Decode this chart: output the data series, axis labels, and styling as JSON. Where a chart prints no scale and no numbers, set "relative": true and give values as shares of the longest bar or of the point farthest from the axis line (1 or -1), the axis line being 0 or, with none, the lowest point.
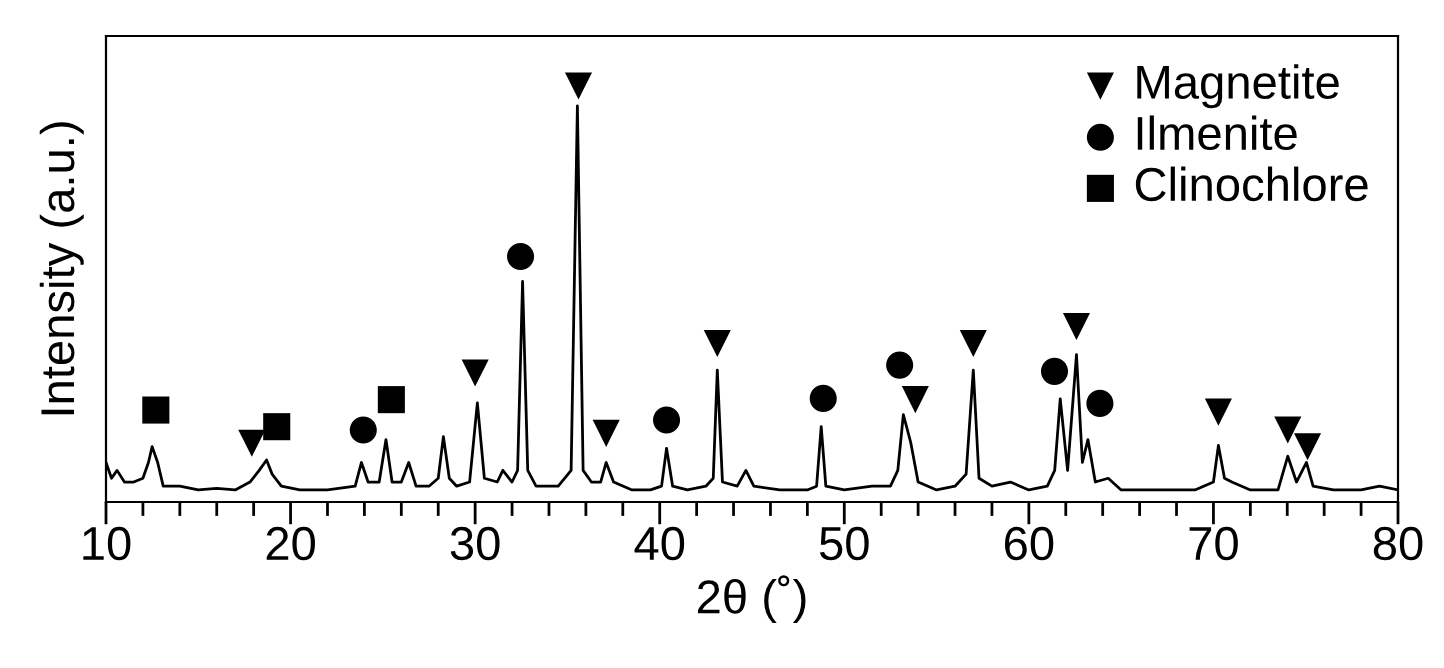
{
  "chart_data": {
    "type": "line",
    "xlabel": "2θ (˚)",
    "ylabel": "Intensity (a.u.)",
    "relative": true,
    "xlim": [
      10,
      80
    ],
    "xticks": [
      10,
      {
        "value": 12,
        "label": null
      },
      {
        "value": 14,
        "label": null
      },
      {
        "value": 16,
        "label": null
      },
      {
        "value": 18,
        "label": null
      },
      20,
      {
        "value": 22,
        "label": null
      },
      {
        "value": 24,
        "label": null
      },
      {
        "value": 26,
        "label": null
      },
      {
        "value": 28,
        "label": null
      },
      30,
      {
        "value": 32,
        "label": null
      },
      {
        "value": 34,
        "label": null
      },
      {
        "value": 36,
        "label": null
      },
      {
        "value": 38,
        "label": null
      },
      40,
      {
        "value": 42,
        "label": null
      },
      {
        "value": 44,
        "label": null
      },
      {
        "value": 46,
        "label": null
      },
      {
        "value": 48,
        "label": null
      },
      50,
      {
        "value": 52,
        "label": null
      },
      {
        "value": 54,
        "label": null
      },
      {
        "value": 56,
        "label": null
      },
      {
        "value": 58,
        "label": null
      },
      60,
      {
        "value": 62,
        "label": null
      },
      {
        "value": 64,
        "label": null
      },
      {
        "value": 66,
        "label": null
      },
      {
        "value": 68,
        "label": null
      },
      70,
      {
        "value": 72,
        "label": null
      },
      {
        "value": 74,
        "label": null
      },
      {
        "value": 76,
        "label": null
      },
      {
        "value": 78,
        "label": null
      },
      80
    ],
    "tick_labels": "x",
    "grid": false,
    "legend": "top right",
    "series": [
      {
        "color": "#000000",
        "marker": "none",
        "x": [
          10.0,
          10.3,
          10.6,
          11.0,
          11.5,
          12.0,
          12.3,
          12.5,
          12.8,
          13.1,
          14,
          15,
          16,
          17,
          17.8,
          18.3,
          18.7,
          19.0,
          19.5,
          20.5,
          22,
          23.5,
          23.84,
          24.2,
          24.8,
          25.17,
          25.5,
          26.0,
          26.4,
          26.8,
          27.5,
          28.0,
          28.28,
          28.6,
          29.0,
          29.7,
          30.12,
          30.5,
          31.2,
          31.5,
          32.0,
          32.3,
          32.57,
          32.85,
          33.3,
          34.5,
          35.2,
          35.54,
          35.85,
          36.3,
          36.8,
          37.1,
          37.5,
          38.5,
          39.5,
          40.1,
          40.37,
          40.7,
          41.5,
          42.5,
          42.9,
          43.12,
          43.4,
          44.2,
          44.67,
          45.1,
          46.5,
          48.0,
          48.5,
          48.75,
          49.0,
          50,
          51.5,
          52.5,
          52.9,
          53.2,
          53.6,
          54.0,
          55.0,
          56.0,
          56.6,
          56.99,
          57.3,
          58.0,
          59.0,
          60.0,
          61.0,
          61.4,
          61.7,
          62.1,
          62.58,
          62.9,
          63.2,
          63.6,
          64.3,
          65,
          67,
          69,
          70.0,
          70.27,
          70.6,
          71.0,
          72,
          73.5,
          74.03,
          74.5,
          75.04,
          75.4,
          76.5,
          78,
          79,
          80
        ],
        "values": [
          0.095,
          0.057,
          0.076,
          0.048,
          0.048,
          0.057,
          0.095,
          0.133,
          0.095,
          0.038,
          0.038,
          0.029,
          0.033,
          0.029,
          0.048,
          0.076,
          0.101,
          0.067,
          0.038,
          0.029,
          0.029,
          0.038,
          0.095,
          0.048,
          0.048,
          0.15,
          0.048,
          0.048,
          0.095,
          0.038,
          0.038,
          0.057,
          0.157,
          0.057,
          0.038,
          0.048,
          0.238,
          0.057,
          0.048,
          0.076,
          0.048,
          0.076,
          0.53,
          0.076,
          0.038,
          0.038,
          0.076,
          0.952,
          0.076,
          0.048,
          0.048,
          0.095,
          0.048,
          0.029,
          0.029,
          0.038,
          0.129,
          0.038,
          0.029,
          0.038,
          0.057,
          0.317,
          0.048,
          0.038,
          0.076,
          0.038,
          0.029,
          0.029,
          0.038,
          0.181,
          0.038,
          0.029,
          0.038,
          0.038,
          0.076,
          0.21,
          0.143,
          0.048,
          0.029,
          0.038,
          0.067,
          0.317,
          0.057,
          0.038,
          0.048,
          0.029,
          0.038,
          0.076,
          0.248,
          0.076,
          0.354,
          0.095,
          0.15,
          0.048,
          0.057,
          0.029,
          0.029,
          0.029,
          0.048,
          0.136,
          0.057,
          0.048,
          0.029,
          0.029,
          0.11,
          0.048,
          0.095,
          0.038,
          0.029,
          0.029,
          0.038,
          0.029
        ]
      },
      {
        "type": "scatter",
        "name": "Magnetite",
        "color": "#000000",
        "marker": "triangle",
        "x": [
          17.9,
          30.0,
          35.6,
          37.1,
          43.12,
          53.85,
          56.99,
          62.58,
          70.27,
          74.03,
          75.1
        ],
        "values": [
          0.141,
          0.31,
          1,
          0.165,
          0.381,
          0.246,
          0.381,
          0.422,
          0.216,
          0.173,
          0.133
        ]
      },
      {
        "type": "scatter",
        "name": "Ilmenite",
        "color": "#000000",
        "marker": "circle",
        "x": [
          23.94,
          32.46,
          40.37,
          48.86,
          53.0,
          61.39,
          63.85
        ],
        "values": [
          0.173,
          0.59,
          0.197,
          0.249,
          0.329,
          0.314,
          0.237
        ]
      },
      {
        "type": "scatter",
        "name": "Clinochlore",
        "color": "#000000",
        "marker": "square",
        "x": [
          12.7,
          19.25,
          25.46
        ],
        "values": [
          0.221,
          0.181,
          0.246
        ]
      }
    ]
  }
}
